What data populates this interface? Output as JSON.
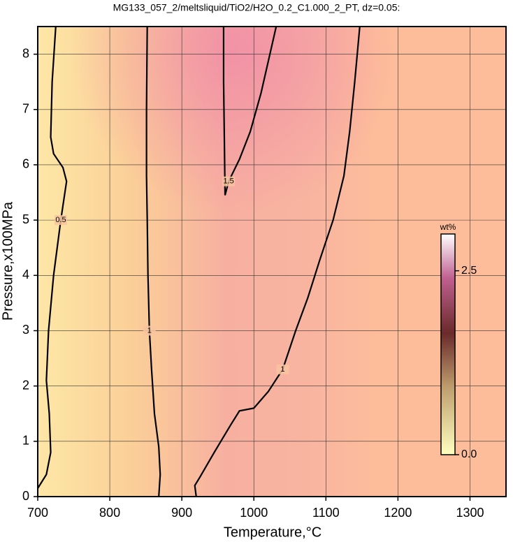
{
  "chart_data": {
    "type": "contour",
    "title": "MG133_057_2/meltsliquid/TiO2/H2O_0.2_C1.000_2_PT, dz=0.05:",
    "x_label": "Temperature,°C",
    "y_label": "Pressure,x100MPa",
    "xlim": [
      700,
      1350
    ],
    "ylim": [
      0,
      8.5
    ],
    "xticks": [
      700,
      800,
      900,
      1000,
      1100,
      1200,
      1300
    ],
    "yticks": [
      0,
      1,
      2,
      3,
      4,
      5,
      6,
      7,
      8
    ],
    "grid": true,
    "colorbar": {
      "label": "wt%",
      "lim": [
        0,
        3
      ],
      "ticks": [
        {
          "value": 0,
          "label": "0.0"
        },
        {
          "value": 2.5,
          "label": "2.5"
        }
      ]
    },
    "contours": [
      {
        "level": 0.5,
        "x": [
          700,
          712,
          718,
          716,
          712,
          715,
          722,
          732,
          740,
          735,
          722,
          718,
          720,
          725
        ],
        "y": [
          0.15,
          0.4,
          0.8,
          1.5,
          2.1,
          3.0,
          4.0,
          5.0,
          5.7,
          5.95,
          6.2,
          6.5,
          7.5,
          8.5
        ]
      },
      {
        "level": 1,
        "x": [
          868,
          870,
          868,
          862,
          858,
          855,
          853,
          852,
          851,
          851,
          852
        ],
        "y": [
          0,
          0.4,
          0.9,
          1.5,
          2.3,
          3.0,
          4.0,
          5.0,
          5.8,
          7.0,
          8.5
        ]
      },
      {
        "level": 1,
        "x": [
          920,
          918,
          925,
          945,
          968,
          980,
          1000,
          1020,
          1040,
          1058,
          1075,
          1092,
          1110,
          1125,
          1133,
          1140,
          1147
        ],
        "y": [
          0,
          0.2,
          0.35,
          0.8,
          1.3,
          1.55,
          1.6,
          1.9,
          2.3,
          3.0,
          3.6,
          4.3,
          5.0,
          5.8,
          6.6,
          7.5,
          8.5
        ]
      },
      {
        "level": 1.5,
        "x": [
          958,
          958,
          959,
          960,
          965,
          980,
          995,
          1010,
          1031
        ],
        "y": [
          8.5,
          7.5,
          6.5,
          5.45,
          5.7,
          6.1,
          6.6,
          7.3,
          8.5
        ]
      }
    ]
  }
}
